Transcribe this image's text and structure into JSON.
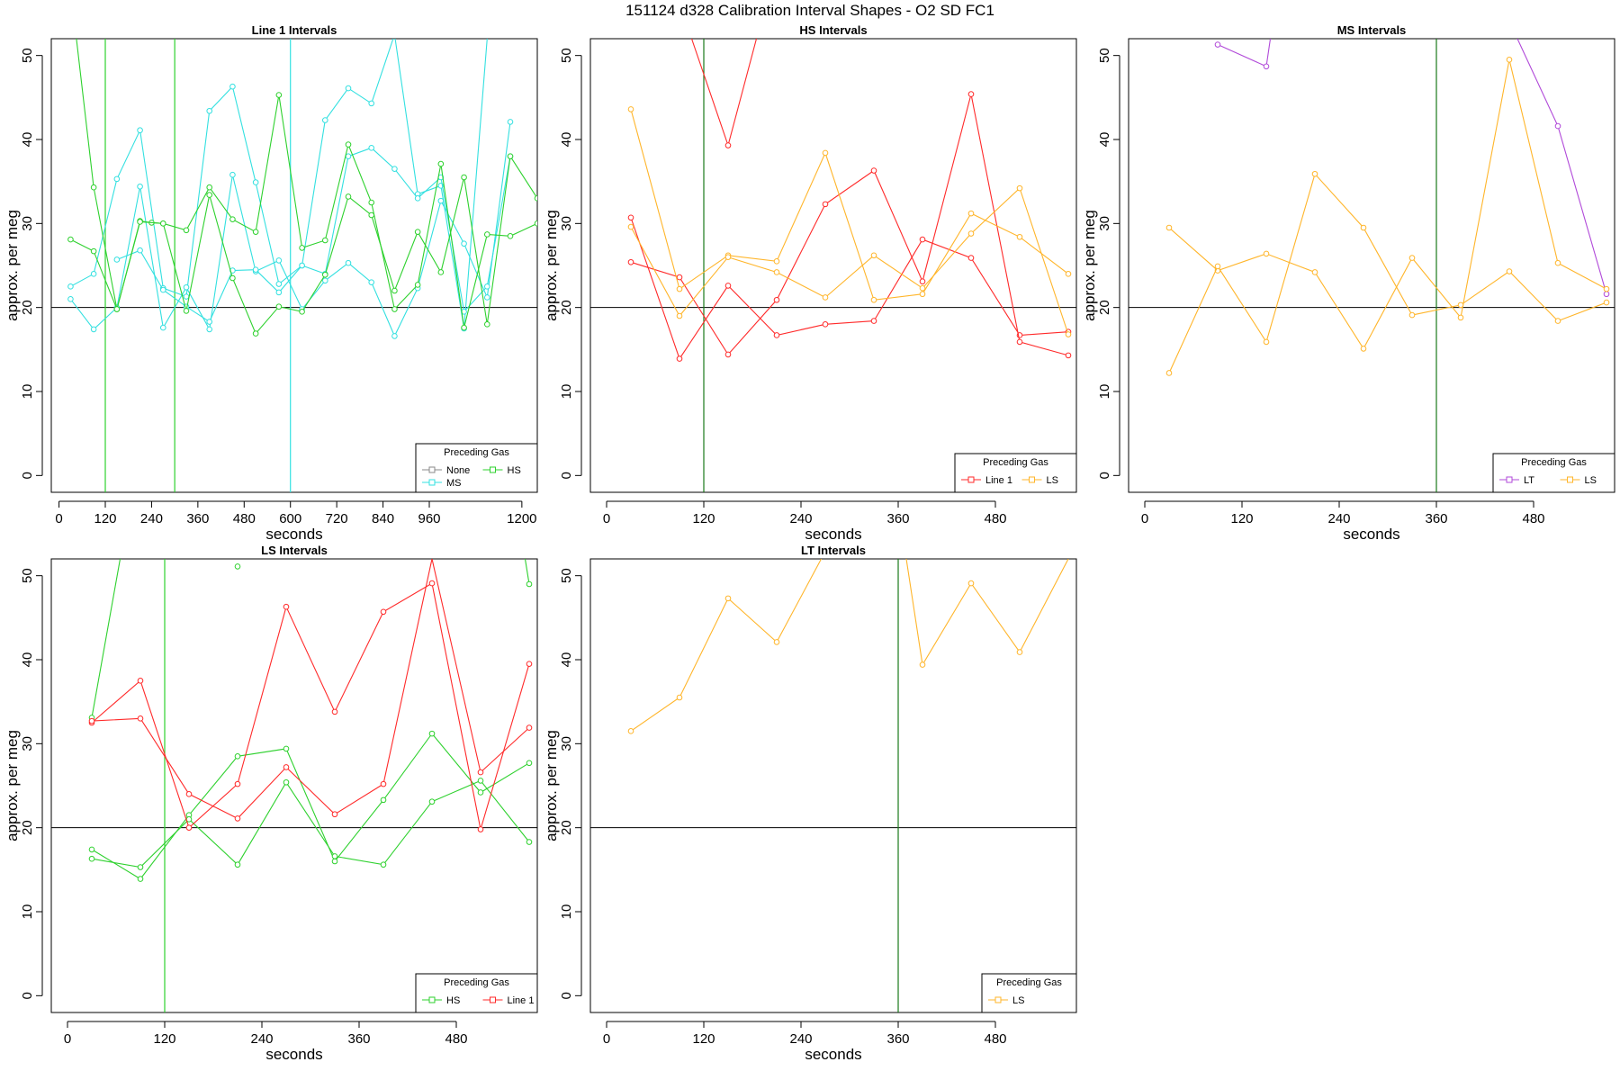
{
  "suptitle": "151124    d328    Calibration Interval Shapes - O2 SD FC1",
  "legend_title": "Preceding Gas",
  "colors": {
    "Line 1": "#ff2a2a",
    "None": "#888888",
    "HS": "#2ed12e",
    "MS": "#33e0e0",
    "LS": "#ffb52a",
    "LT": "#b14ad9",
    "vline_default": "#1a7a1a",
    "hline": "#000000"
  },
  "chart_data": [
    {
      "type": "line",
      "title": "Line 1 Intervals",
      "xlabel": "seconds",
      "ylabel": "approx. per meg",
      "xlim": [
        -20,
        1240
      ],
      "ylim": [
        -2,
        52
      ],
      "xticks": [
        0,
        120,
        240,
        360,
        480,
        600,
        720,
        840,
        960,
        1200
      ],
      "xtick_labels": [
        "0",
        "120",
        "240",
        "360",
        "480",
        "600",
        "720",
        "840",
        "960",
        "1200"
      ],
      "yticks": [
        0,
        10,
        20,
        30,
        40,
        50
      ],
      "hline": 20,
      "vlines": [
        {
          "x": 120,
          "color": "HS"
        },
        {
          "x": 300,
          "color": "HS"
        },
        {
          "x": 600,
          "color": "MS"
        }
      ],
      "legend": {
        "position": "bottom-right",
        "entries": [
          "None",
          "HS",
          "MS"
        ]
      },
      "series": [
        {
          "name": "MS",
          "x": [
            30,
            90,
            150,
            210,
            270,
            330,
            390,
            450,
            510,
            570,
            630,
            690,
            750,
            810,
            870,
            930,
            990,
            1050,
            1110,
            1170
          ],
          "y": [
            22.5,
            24.0,
            35.3,
            41.1,
            22.3,
            21.3,
            43.4,
            46.3,
            34.9,
            22.8,
            25.0,
            42.3,
            46.1,
            44.3,
            52.5,
            33.5,
            34.5,
            17.5,
            52.0,
            58.0
          ]
        },
        {
          "name": "MS",
          "x": [
            30,
            90,
            150,
            210,
            270,
            330,
            390,
            450,
            510,
            570,
            630,
            690,
            750,
            810,
            870,
            930,
            990,
            1050,
            1110,
            1170
          ],
          "y": [
            21.0,
            17.4,
            20.0,
            34.4,
            17.6,
            22.4,
            17.4,
            35.8,
            24.3,
            25.6,
            19.8,
            23.2,
            25.3,
            23.0,
            16.6,
            22.3,
            32.7,
            27.6,
            21.2,
            42.1
          ]
        },
        {
          "name": "MS",
          "x": [
            150,
            210,
            270,
            330,
            390,
            450,
            510,
            570,
            630,
            690,
            750,
            810,
            870,
            930,
            990,
            1050,
            1110,
            1170
          ],
          "y": [
            25.7,
            26.8,
            22.1,
            20.1,
            18.3,
            24.4,
            24.5,
            21.8,
            25.0,
            24.0,
            38.0,
            39.0,
            36.5,
            33.0,
            35.5,
            19.5,
            22.5,
            38.0
          ]
        },
        {
          "name": "HS",
          "x": [
            30,
            90,
            150,
            210,
            240,
            270,
            330,
            390,
            450,
            510,
            570,
            630,
            690,
            750,
            810,
            870,
            930,
            990,
            1050,
            1110,
            1170,
            1240
          ],
          "y": [
            28.1,
            26.7,
            19.8,
            30.3,
            30.1,
            30.0,
            29.2,
            34.3,
            30.5,
            29.0,
            45.3,
            27.1,
            28.0,
            39.4,
            32.5,
            19.8,
            22.7,
            37.1,
            17.6,
            28.7,
            28.5,
            30.0
          ]
        },
        {
          "name": "HS",
          "x": [
            30,
            90,
            150,
            210,
            270,
            330,
            390,
            450,
            510,
            570,
            630,
            690,
            750,
            810,
            870,
            930,
            990,
            1050,
            1110,
            1170,
            1240
          ],
          "y": [
            58.0,
            34.3,
            19.8,
            30.2,
            30.0,
            19.6,
            33.4,
            23.5,
            16.9,
            20.1,
            19.5,
            23.9,
            33.2,
            31.0,
            22.0,
            29.0,
            24.2,
            35.5,
            18.0,
            38.0,
            33.0
          ]
        }
      ]
    },
    {
      "type": "line",
      "title": "HS Intervals",
      "xlabel": "seconds",
      "ylabel": "approx. per meg",
      "xlim": [
        -20,
        580
      ],
      "ylim": [
        -2,
        52
      ],
      "xticks": [
        0,
        120,
        240,
        360,
        480
      ],
      "xtick_labels": [
        "0",
        "120",
        "240",
        "360",
        "480"
      ],
      "yticks": [
        0,
        10,
        20,
        30,
        40,
        50
      ],
      "hline": 20,
      "vlines": [
        {
          "x": 120,
          "color": "vline_default"
        }
      ],
      "legend": {
        "position": "bottom-right",
        "entries": [
          "Line 1",
          "LS"
        ]
      },
      "series": [
        {
          "name": "Line 1",
          "x": [
            30,
            90,
            150,
            210,
            270,
            330,
            390,
            450,
            510,
            570
          ],
          "y": [
            30.7,
            13.9,
            22.6,
            16.7,
            18.0,
            18.4,
            28.1,
            25.9,
            16.7,
            17.1
          ]
        },
        {
          "name": "Line 1",
          "x": [
            30,
            90,
            150,
            210,
            270,
            330,
            390,
            450,
            510,
            570
          ],
          "y": [
            25.4,
            23.6,
            14.4,
            20.9,
            32.3,
            36.3,
            23.1,
            45.4,
            15.9,
            14.3
          ]
        },
        {
          "name": "Line 1",
          "x": [
            105,
            150,
            185
          ],
          "y": [
            52.0,
            39.3,
            52.0
          ]
        },
        {
          "name": "LS",
          "x": [
            30,
            90,
            150,
            210,
            270,
            330,
            390,
            450,
            510,
            570
          ],
          "y": [
            43.6,
            22.2,
            26.2,
            25.5,
            38.4,
            20.9,
            21.6,
            31.2,
            28.4,
            24.0
          ]
        },
        {
          "name": "LS",
          "x": [
            30,
            90,
            150,
            210,
            270,
            330,
            390,
            450,
            510,
            570
          ],
          "y": [
            29.6,
            19.0,
            26.0,
            24.2,
            21.2,
            26.2,
            22.3,
            28.8,
            34.2,
            16.8
          ]
        }
      ]
    },
    {
      "type": "line",
      "title": "MS Intervals",
      "xlabel": "seconds",
      "ylabel": "approx. per meg",
      "xlim": [
        -20,
        580
      ],
      "ylim": [
        -2,
        52
      ],
      "xticks": [
        0,
        120,
        240,
        360,
        480
      ],
      "xtick_labels": [
        "0",
        "120",
        "240",
        "360",
        "480"
      ],
      "yticks": [
        0,
        10,
        20,
        30,
        40,
        50
      ],
      "hline": 20,
      "vlines": [
        {
          "x": 360,
          "color": "vline_default"
        }
      ],
      "legend": {
        "position": "bottom-right",
        "entries": [
          "LT",
          "LS"
        ]
      },
      "series": [
        {
          "name": "LT",
          "x": [
            90,
            150,
            155
          ],
          "y": [
            51.3,
            48.7,
            52.0
          ]
        },
        {
          "name": "LT",
          "x": [
            460,
            510,
            570
          ],
          "y": [
            52.0,
            41.6,
            21.6
          ]
        },
        {
          "name": "LS",
          "x": [
            30,
            90,
            150,
            210,
            270,
            330,
            390,
            450,
            510,
            570
          ],
          "y": [
            29.5,
            24.4,
            26.4,
            24.2,
            15.1,
            25.9,
            18.8,
            49.5,
            25.3,
            22.2
          ]
        },
        {
          "name": "LS",
          "x": [
            30,
            90,
            150,
            210,
            270,
            330,
            390,
            450,
            510,
            570
          ],
          "y": [
            12.2,
            24.9,
            15.9,
            35.9,
            29.5,
            19.1,
            20.3,
            24.3,
            18.4,
            20.6
          ]
        }
      ]
    },
    {
      "type": "line",
      "title": "LS Intervals",
      "xlabel": "seconds",
      "ylabel": "approx. per meg",
      "xlim": [
        -20,
        580
      ],
      "ylim": [
        -2,
        52
      ],
      "xticks": [
        0,
        120,
        240,
        360,
        480
      ],
      "xtick_labels": [
        "0",
        "120",
        "240",
        "360",
        "480"
      ],
      "yticks": [
        0,
        10,
        20,
        30,
        40,
        50
      ],
      "hline": 20,
      "vlines": [
        {
          "x": 120,
          "color": "HS"
        }
      ],
      "legend": {
        "position": "bottom-right",
        "entries": [
          "HS",
          "Line 1"
        ]
      },
      "series": [
        {
          "name": "HS",
          "x": [
            30,
            90,
            150,
            210,
            270,
            330,
            390,
            450,
            510,
            570
          ],
          "y": [
            17.4,
            13.9,
            21.5,
            28.5,
            29.4,
            16.0,
            23.3,
            31.2,
            24.2,
            27.7
          ]
        },
        {
          "name": "HS",
          "x": [
            30,
            90,
            150,
            210,
            270,
            330,
            390,
            450,
            510,
            570
          ],
          "y": [
            16.3,
            15.3,
            21.0,
            15.6,
            25.4,
            16.6,
            15.6,
            23.1,
            25.6,
            18.3
          ]
        },
        {
          "name": "HS",
          "x": [
            30,
            65
          ],
          "y": [
            33.1,
            52.0
          ]
        },
        {
          "name": "HS",
          "x": [
            210
          ],
          "y": [
            51.1
          ]
        },
        {
          "name": "HS",
          "x": [
            565,
            570
          ],
          "y": [
            52.0,
            49.0
          ]
        },
        {
          "name": "Line 1",
          "x": [
            30,
            90,
            150,
            210,
            270,
            330,
            390,
            450,
            510,
            570
          ],
          "y": [
            32.5,
            37.5,
            20.0,
            25.2,
            46.3,
            33.8,
            45.7,
            49.1,
            19.8,
            39.5
          ]
        },
        {
          "name": "Line 1",
          "x": [
            30,
            90,
            150,
            210,
            270,
            330,
            390,
            450,
            510,
            570
          ],
          "y": [
            32.7,
            33.0,
            24.0,
            21.1,
            27.2,
            21.6,
            25.2,
            52.0,
            26.6,
            31.9
          ]
        }
      ]
    },
    {
      "type": "line",
      "title": "LT Intervals",
      "xlabel": "seconds",
      "ylabel": "approx. per meg",
      "xlim": [
        -20,
        580
      ],
      "ylim": [
        -2,
        52
      ],
      "xticks": [
        0,
        120,
        240,
        360,
        480
      ],
      "xtick_labels": [
        "0",
        "120",
        "240",
        "360",
        "480"
      ],
      "yticks": [
        0,
        10,
        20,
        30,
        40,
        50
      ],
      "hline": 20,
      "vlines": [
        {
          "x": 360,
          "color": "vline_default"
        }
      ],
      "legend": {
        "position": "bottom-right",
        "entries": [
          "LS"
        ]
      },
      "series": [
        {
          "name": "LS",
          "x": [
            30,
            90,
            150,
            210,
            265
          ],
          "y": [
            31.5,
            35.5,
            47.3,
            42.1,
            52.0
          ]
        },
        {
          "name": "LS",
          "x": [
            370,
            390,
            450,
            510,
            570
          ],
          "y": [
            52.0,
            39.4,
            49.1,
            40.9,
            52.0
          ]
        }
      ]
    }
  ]
}
